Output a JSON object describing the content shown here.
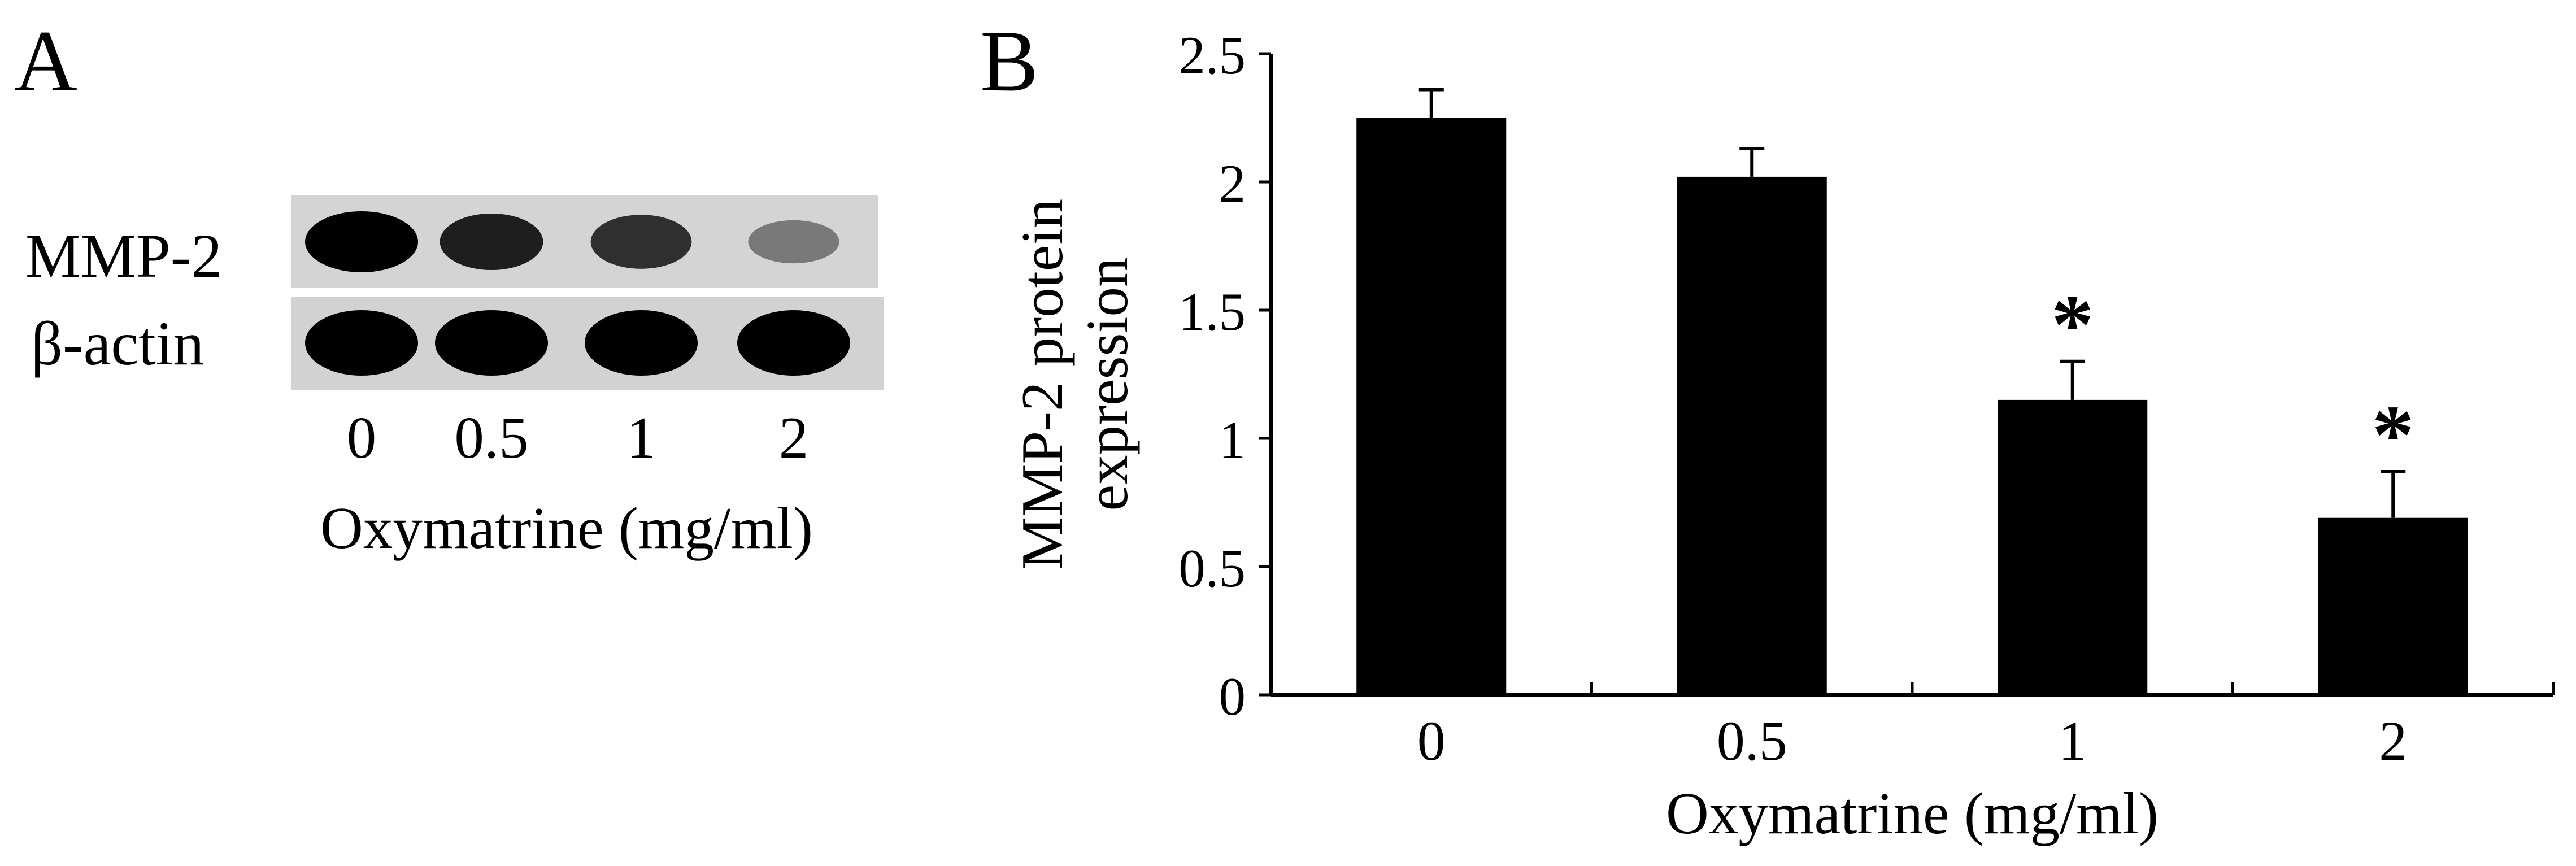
{
  "panel_a": {
    "label": "A",
    "rows": [
      {
        "label": "MMP-2",
        "intensities": [
          1.0,
          0.82,
          0.72,
          0.28
        ]
      },
      {
        "label": "β-actin",
        "intensities": [
          1.0,
          1.0,
          1.0,
          1.0
        ]
      }
    ],
    "lanes": [
      "0",
      "0.5",
      "1",
      "2"
    ],
    "xlabel": "Oxymatrine (mg/ml)"
  },
  "panel_b": {
    "label": "B"
  },
  "chart_data": {
    "type": "bar",
    "categories": [
      "0",
      "0.5",
      "1",
      "2"
    ],
    "values": [
      2.25,
      2.02,
      1.15,
      0.69
    ],
    "errors": [
      0.11,
      0.11,
      0.15,
      0.18
    ],
    "significance": [
      "",
      "",
      "*",
      "*"
    ],
    "title": "",
    "xlabel": "Oxymatrine (mg/ml)",
    "ylabel_lines": [
      "MMP-2 protein",
      "expression"
    ],
    "ylim": [
      0,
      2.5
    ],
    "yticks": [
      "0",
      "0.5",
      "1",
      "1.5",
      "2",
      "2.5"
    ],
    "grid": false,
    "legend": "none",
    "bar_color": "#000000"
  }
}
